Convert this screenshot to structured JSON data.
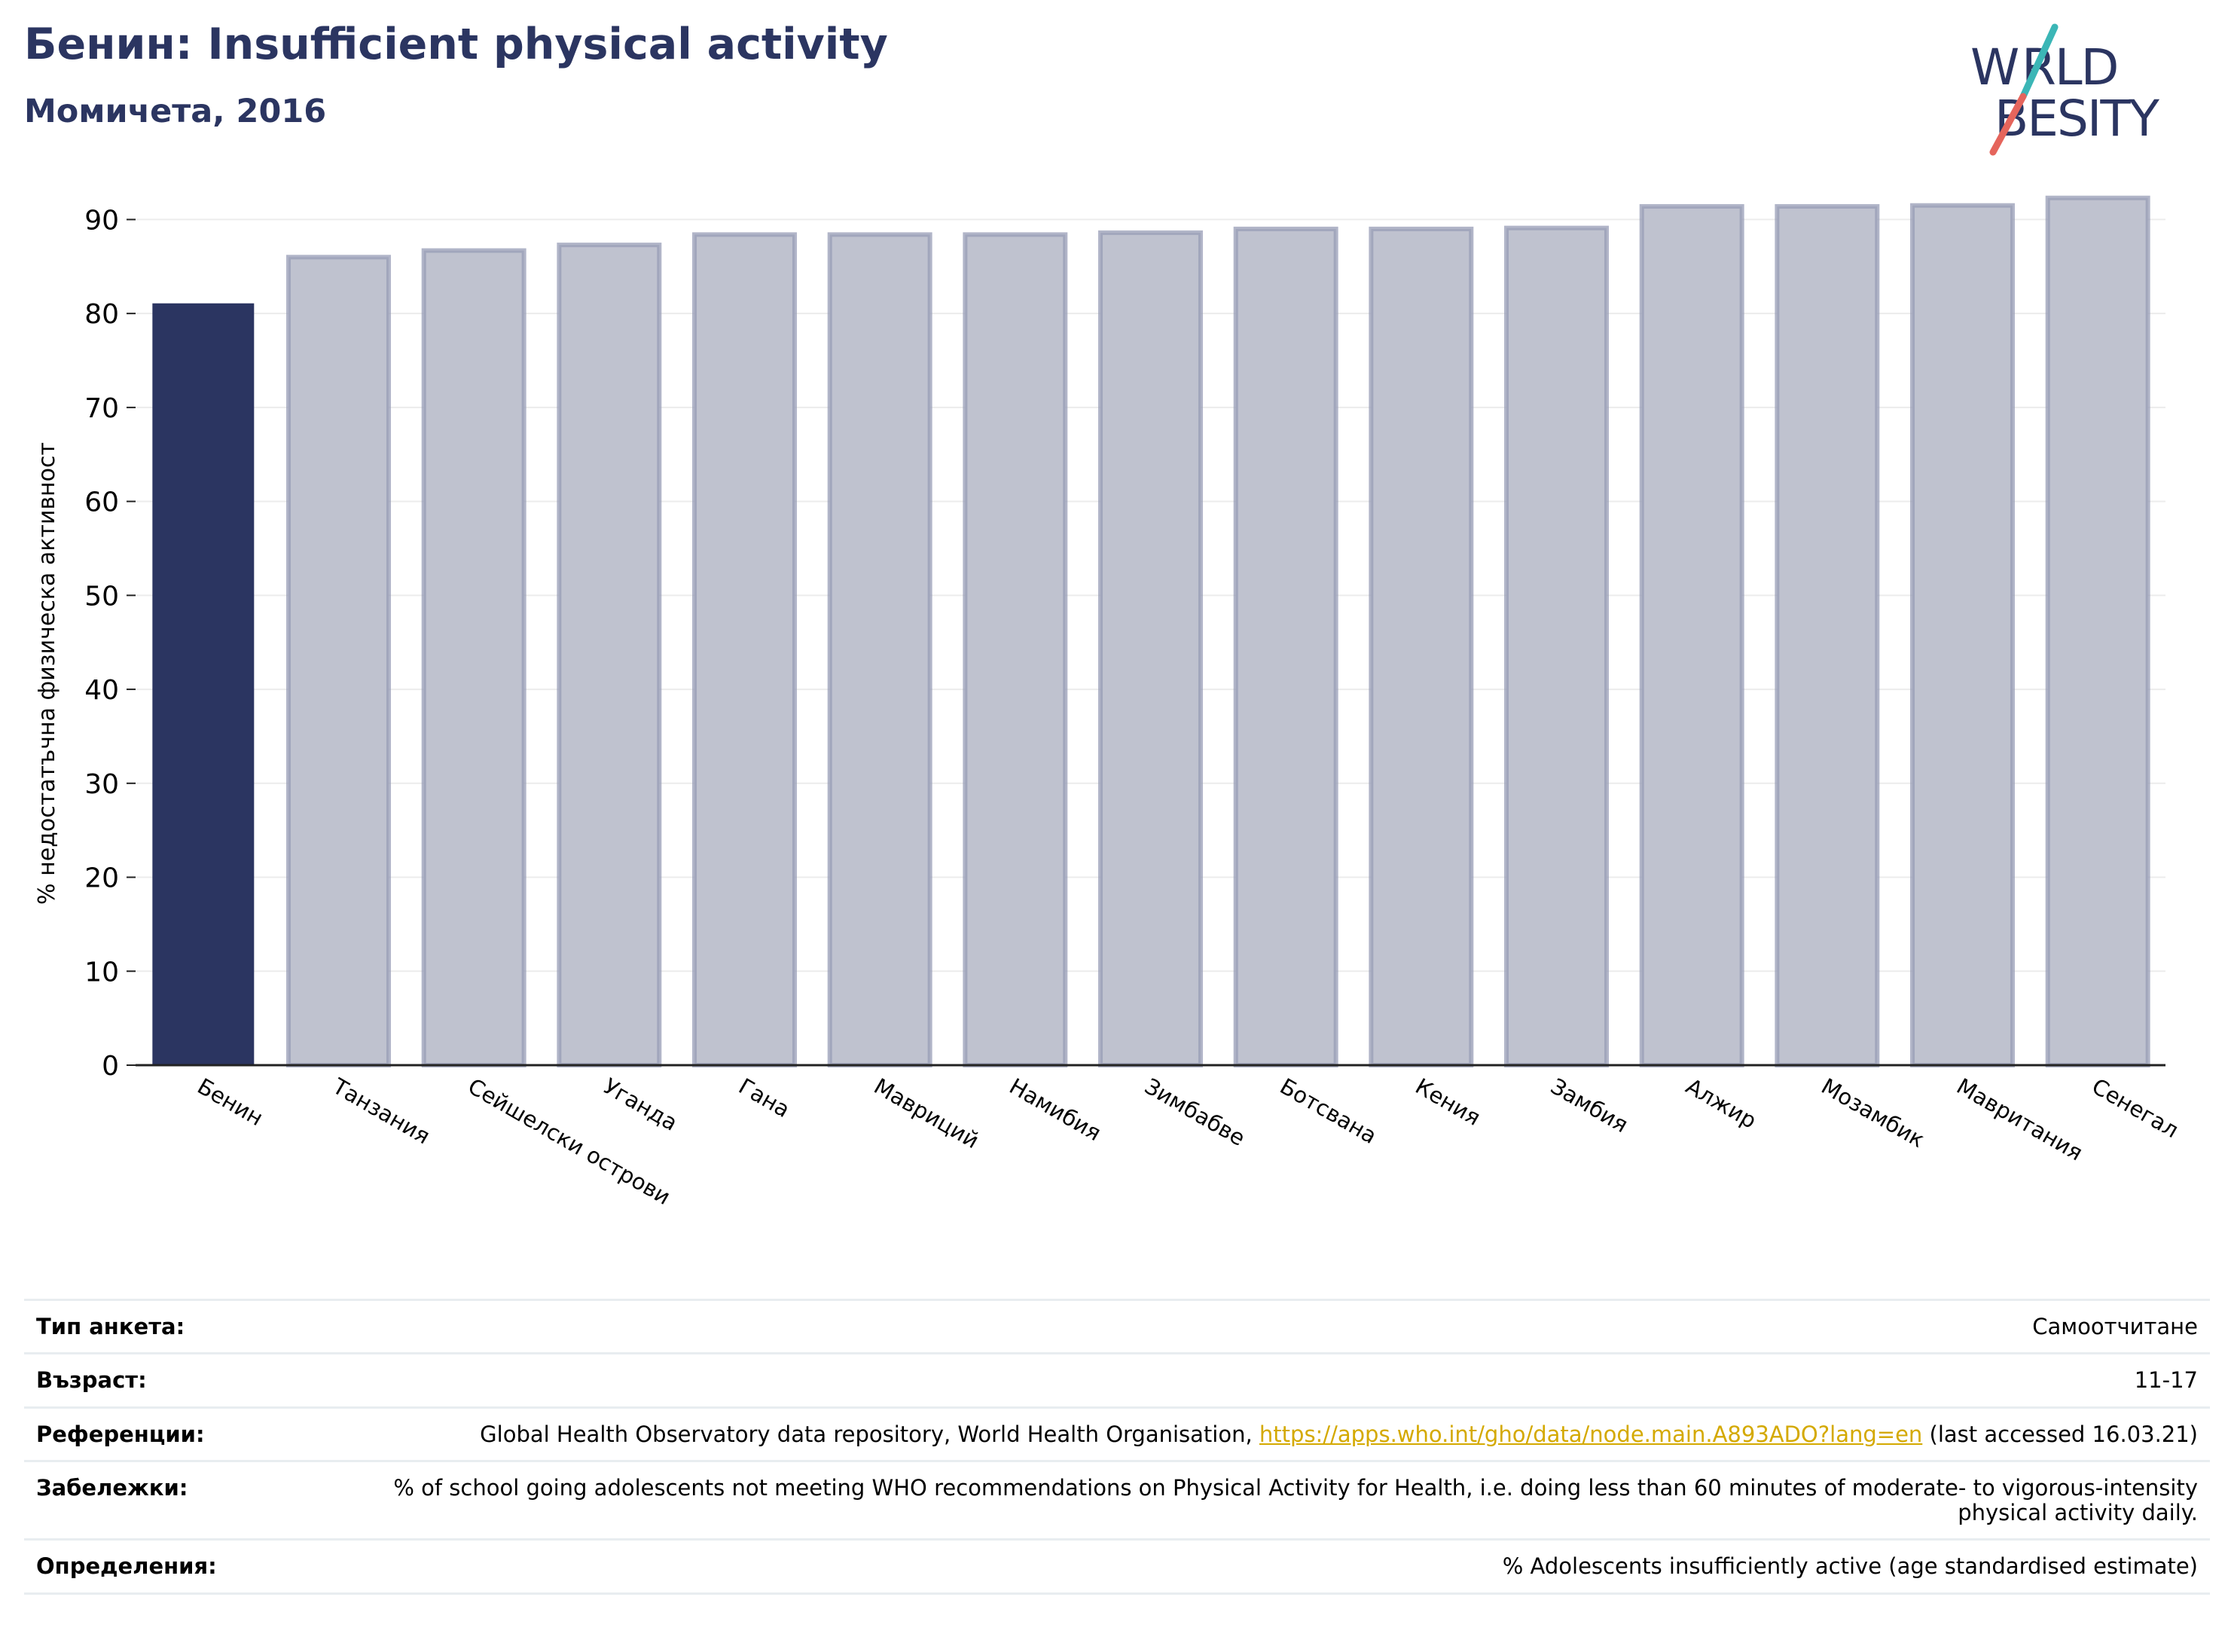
{
  "header": {
    "title": "Бенин: Insufficient physical activity",
    "subtitle": "Момичета, 2016"
  },
  "logo": {
    "line1": "WORLD",
    "line2": "OBESITY",
    "colors": {
      "text": "#2b3561",
      "slash_teal": "#3bb6b6",
      "slash_red": "#e5655c"
    }
  },
  "chart_data": {
    "type": "bar",
    "categories": [
      "Бенин",
      "Танзания",
      "Сейшелски острови",
      "Уганда",
      "Гана",
      "Мавриций",
      "Намибия",
      "Зимбабве",
      "Ботсвана",
      "Кения",
      "Замбия",
      "Алжир",
      "Мозамбик",
      "Мавритания",
      "Сенегал"
    ],
    "values": [
      81.0,
      86.0,
      86.7,
      87.3,
      88.4,
      88.4,
      88.4,
      88.6,
      89.0,
      89.0,
      89.1,
      91.4,
      91.4,
      91.5,
      92.3
    ],
    "highlight_index": 0,
    "ylabel": "% недостатъчна физическа активност",
    "yticks": [
      0,
      10,
      20,
      30,
      40,
      50,
      60,
      70,
      80,
      90
    ],
    "ylim": [
      0,
      93
    ],
    "grid": true,
    "colors": {
      "highlight": "#2b3561",
      "bar_fill": "#bfc2cf",
      "bar_edge": "#979cb6",
      "grid": "#ececec"
    }
  },
  "meta": {
    "rows": [
      {
        "key": "Тип анкета:",
        "value": "Самоотчитане"
      },
      {
        "key": "Възраст:",
        "value": "11-17"
      },
      {
        "key": "Референции:",
        "value_before": "Global Health Observatory data repository, World Health Organisation, ",
        "link": "https://apps.who.int/gho/data/node.main.A893ADO?lang=en",
        "value_after": " (last accessed 16.03.21)"
      },
      {
        "key": "Забележки:",
        "value": "% of school going adolescents not meeting WHO recommendations on Physical Activity for Health, i.e. doing less than 60 minutes of moderate- to vigorous-intensity physical activity daily."
      },
      {
        "key": "Определения:",
        "value": "% Adolescents insufficiently active (age standardised estimate)"
      }
    ]
  }
}
